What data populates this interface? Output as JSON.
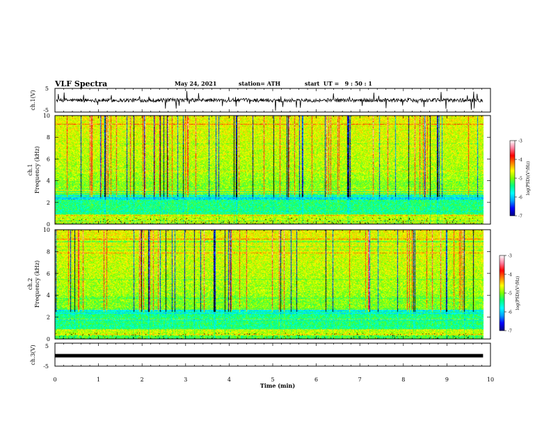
{
  "header": {
    "title": "VLF Spectra",
    "date": "May 24, 2021",
    "station": "station= ATH",
    "start": "start  UT =   9 : 50 : 1"
  },
  "chart_data": [
    {
      "name": "ch1-waveform",
      "type": "line",
      "ylabel": "ch.1(V)",
      "ylim": [
        -5,
        5
      ],
      "yticks": [
        "5",
        "-5"
      ],
      "xlim": [
        0,
        10
      ],
      "trace_color": "#000000"
    },
    {
      "name": "ch1-spectrogram",
      "type": "heatmap",
      "ylabel_line1": "ch.1",
      "ylabel_line2": "Frequency  (kHz)",
      "ylim": [
        0,
        10
      ],
      "yticks": [
        "0",
        "2",
        "4",
        "6",
        "8",
        "10"
      ],
      "xlim": [
        0,
        10
      ],
      "data_end_min": 9.83,
      "colorbar": {
        "label": "log(PSD)(V²/Hz)",
        "range": [
          -7,
          -3
        ],
        "ticks": [
          "-3",
          "-4",
          "-5",
          "-6",
          "-7"
        ],
        "colors": [
          "#000080",
          "#0000ff",
          "#00a0ff",
          "#00ffff",
          "#00ff80",
          "#80ff00",
          "#ffff00",
          "#ff8000",
          "#ff0000",
          "#ff80a0",
          "#ffffff"
        ]
      }
    },
    {
      "name": "ch2-spectrogram",
      "type": "heatmap",
      "ylabel_line1": "ch.2",
      "ylabel_line2": "Frequency  (kHz)",
      "ylim": [
        0,
        10
      ],
      "yticks": [
        "0",
        "2",
        "4",
        "6",
        "8",
        "10"
      ],
      "xlim": [
        0,
        10
      ],
      "data_end_min": 9.83,
      "colorbar": {
        "label": "log(PSD)(V²/Hz)",
        "range": [
          -7,
          -3
        ],
        "ticks": [
          "-3",
          "-4",
          "-5",
          "-6",
          "-7"
        ],
        "colors": [
          "#000080",
          "#0000ff",
          "#00a0ff",
          "#00ffff",
          "#00ff80",
          "#80ff00",
          "#ffff00",
          "#ff8000",
          "#ff0000",
          "#ff80a0",
          "#ffffff"
        ]
      }
    },
    {
      "name": "ch3-waveform",
      "type": "line",
      "ylabel": "ch.3(V)",
      "ylim": [
        -5,
        5
      ],
      "yticks": [
        "5",
        "-5"
      ],
      "xlim": [
        0,
        10
      ],
      "value": 0,
      "trace_color": "#000000"
    }
  ],
  "xaxis": {
    "label": "Time  (min)",
    "ticks": [
      "0",
      "1",
      "2",
      "3",
      "4",
      "5",
      "6",
      "7",
      "8",
      "9",
      "10"
    ]
  }
}
